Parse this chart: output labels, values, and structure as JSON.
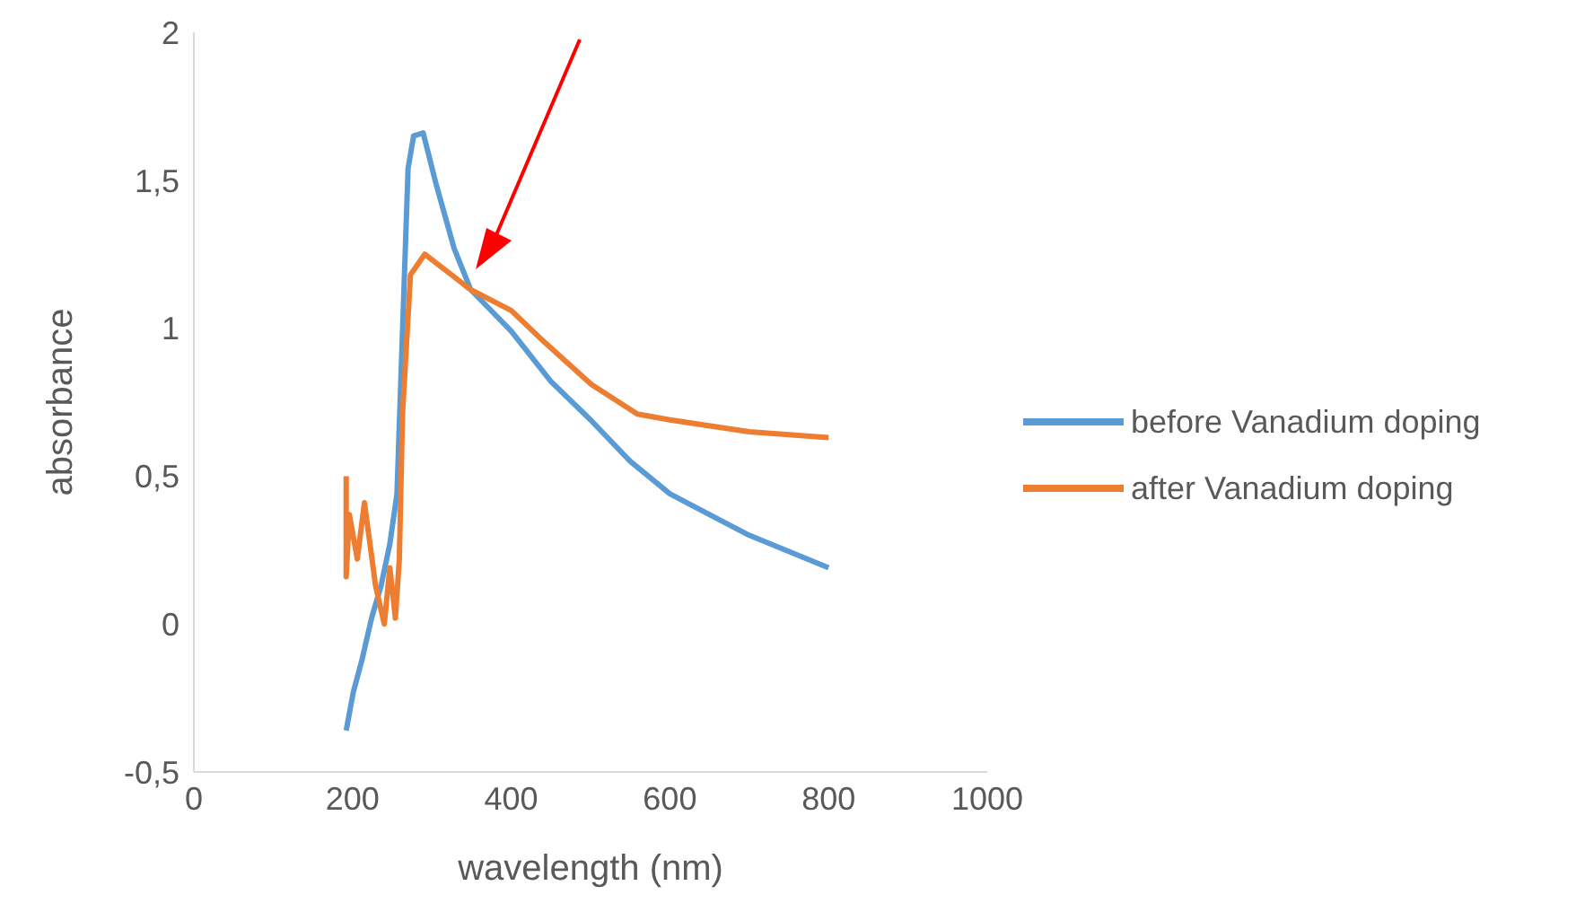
{
  "chart_data": {
    "type": "line",
    "xlabel": "wavelength (nm)",
    "ylabel": "absorbance",
    "xlim": [
      0,
      1000
    ],
    "xticks": [
      0,
      200,
      400,
      600,
      800,
      1000
    ],
    "ylim": [
      -0.5,
      2
    ],
    "yticks": [
      {
        "value": -0.5,
        "label": "-0,5"
      },
      0,
      {
        "value": 0.5,
        "label": "0,5"
      },
      1,
      {
        "value": 1.5,
        "label": "1,5"
      },
      2
    ],
    "grid": false,
    "legend": "right",
    "marker": "none",
    "line_style": "solid",
    "series": [
      {
        "name": "before Vanadium doping",
        "color": "#5b9bd5",
        "x": [
          192,
          201,
          212,
          224,
          236,
          247,
          256,
          263,
          270,
          277,
          289,
          305,
          328,
          349,
          400,
          450,
          500,
          550,
          600,
          700,
          800
        ],
        "values": [
          -0.36,
          -0.23,
          -0.12,
          0.02,
          0.13,
          0.27,
          0.44,
          0.99,
          1.54,
          1.65,
          1.66,
          1.49,
          1.27,
          1.13,
          0.99,
          0.82,
          0.69,
          0.55,
          0.44,
          0.3,
          0.19
        ]
      },
      {
        "name": "after Vanadium doping",
        "color": "#ed7d31",
        "x": [
          192,
          192,
          196,
          206,
          215,
          222,
          229,
          240,
          247,
          254,
          259,
          263,
          273,
          291,
          349,
          400,
          443,
          501,
          559,
          600,
          700,
          800
        ],
        "values": [
          0.5,
          0.16,
          0.37,
          0.22,
          0.41,
          0.27,
          0.13,
          0.0,
          0.19,
          0.02,
          0.22,
          0.71,
          1.18,
          1.25,
          1.13,
          1.06,
          0.95,
          0.81,
          0.71,
          0.69,
          0.65,
          0.63
        ]
      }
    ]
  }
}
